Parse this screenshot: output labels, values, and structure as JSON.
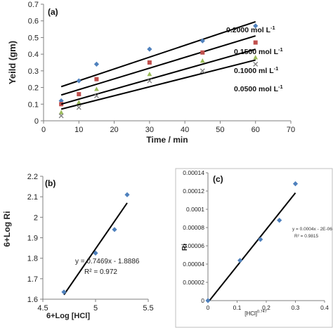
{
  "chart_data": [
    {
      "panel": "(a)",
      "type": "scatter",
      "xlabel": "Time / min",
      "ylabel": "Yeild (gm)",
      "xlim": [
        0,
        70
      ],
      "ylim": [
        0,
        0.7
      ],
      "xticks": [
        0,
        10,
        20,
        30,
        40,
        50,
        60,
        70
      ],
      "yticks": [
        0,
        0.1,
        0.2,
        0.3,
        0.4,
        0.5,
        0.6,
        0.7
      ],
      "x": [
        5,
        10,
        15,
        30,
        45,
        60
      ],
      "grid": false,
      "series": [
        {
          "name": "0.2000 mol L-1",
          "marker": "diamond",
          "color": "#4f81bd",
          "values": [
            0.12,
            0.24,
            0.34,
            0.43,
            0.48,
            0.57
          ],
          "fit": [
            0.205,
            0.595
          ]
        },
        {
          "name": "0.1500 mol L-1",
          "marker": "square",
          "color": "#c0504d",
          "values": [
            0.1,
            0.16,
            0.25,
            0.35,
            0.41,
            0.47
          ],
          "fit": [
            0.155,
            0.51
          ]
        },
        {
          "name": "0.1000 ml L-1",
          "marker": "triangle",
          "color": "#9bbb59",
          "values": [
            0.05,
            0.11,
            0.19,
            0.28,
            0.36,
            0.38
          ],
          "fit": [
            0.1,
            0.43
          ]
        },
        {
          "name": "0.0500 mol L-1",
          "marker": "cross",
          "color": "#7f7f7f",
          "values": [
            0.03,
            0.08,
            0.15,
            0.24,
            0.3,
            0.34
          ],
          "fit": [
            0.07,
            0.365
          ]
        }
      ]
    },
    {
      "panel": "(b)",
      "type": "scatter",
      "xlabel": "6+Log [HCl]",
      "ylabel": "6+Log Ri",
      "xlim": [
        4.5,
        5.5
      ],
      "ylim": [
        1.6,
        2.2
      ],
      "xticks": [
        4.5,
        5,
        5.5
      ],
      "yticks": [
        1.6,
        1.7,
        1.8,
        1.9,
        2,
        2.1,
        2.2
      ],
      "points": {
        "x": [
          4.7,
          5.0,
          5.18,
          5.3
        ],
        "y": [
          1.635,
          1.825,
          1.94,
          2.11
        ]
      },
      "fit": {
        "x": [
          4.7,
          5.3
        ],
        "slope": 0.7469,
        "intercept": -1.8886
      },
      "equation": "y = 0.7469x - 1.8886",
      "r2": "R² = 0.972",
      "grid": false
    },
    {
      "panel": "(c)",
      "type": "scatter",
      "xlabel": "[HCl]",
      "xlabel_sup": "0.747",
      "ylabel": "Ri",
      "xlim": [
        0,
        0.4
      ],
      "ylim": [
        0,
        0.00014
      ],
      "xticks": [
        "0",
        "0.1",
        "0.2",
        "0.3",
        "0.4"
      ],
      "yticks": [
        "0",
        "0.00002",
        "0.00004",
        "0.00006",
        "0.00008",
        "0.0001",
        "0.00012",
        "0.00014"
      ],
      "points": {
        "x": [
          0,
          0.11,
          0.18,
          0.245,
          0.3
        ],
        "y": [
          0,
          4.4e-05,
          6.7e-05,
          8.8e-05,
          0.000128
        ]
      },
      "fit": {
        "x": [
          0.005,
          0.3
        ],
        "slope": 0.0004,
        "intercept": -2e-06
      },
      "equation": "y = 0.0004x - 2E-06",
      "r2": "R² = 0.9815",
      "grid": false
    }
  ]
}
